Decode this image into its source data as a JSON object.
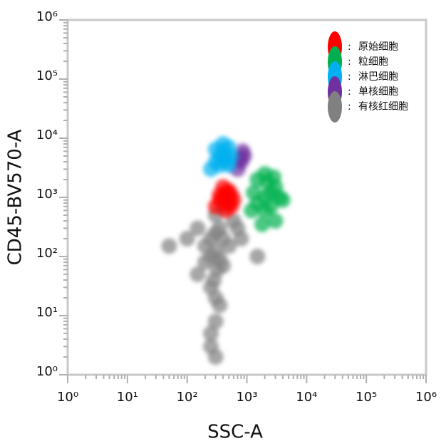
{
  "chart_data": {
    "type": "scatter",
    "x_label": "SSC-A",
    "y_label": "CD45-BV570-A",
    "log_x": true,
    "log_y": true,
    "minor_ticks": true,
    "legend_position": "upper right",
    "legend_separator": ":",
    "xlim": [
      1,
      1000000
    ],
    "ylim": [
      1,
      1000000
    ],
    "xticks": [
      {
        "value": 1,
        "label": "10⁰"
      },
      {
        "value": 10,
        "label": "10¹"
      },
      {
        "value": 100,
        "label": "10²"
      },
      {
        "value": 1000,
        "label": "10³"
      },
      {
        "value": 10000,
        "label": "10⁴"
      },
      {
        "value": 100000,
        "label": "10⁵"
      },
      {
        "value": 1000000,
        "label": "10⁶"
      }
    ],
    "yticks": [
      {
        "value": 1,
        "label": "10⁰"
      },
      {
        "value": 10,
        "label": "10¹"
      },
      {
        "value": 100,
        "label": "10²"
      },
      {
        "value": 1000,
        "label": "10³"
      },
      {
        "value": 10000,
        "label": "10⁴"
      },
      {
        "value": 100000,
        "label": "10⁵"
      },
      {
        "value": 1000000,
        "label": "10⁶"
      }
    ],
    "series": [
      {
        "name": "原始细胞",
        "color": "#ff0000",
        "x": [
          300,
          350,
          400,
          450,
          500,
          550,
          600,
          400,
          450,
          500,
          350,
          550
        ],
        "values": [
          700,
          900,
          1000,
          1200,
          800,
          1100,
          900,
          1500,
          600,
          1300,
          1100,
          700
        ]
      },
      {
        "name": "粒细胞",
        "color": "#00b050",
        "x": [
          1200,
          1500,
          2000,
          2500,
          3000,
          3500,
          1500,
          2000,
          2500,
          3000,
          1800,
          2200,
          1300,
          4000,
          2000,
          2800
        ],
        "values": [
          600,
          800,
          1000,
          1200,
          1500,
          1000,
          2000,
          2500,
          700,
          400,
          350,
          1800,
          1200,
          900,
          600,
          2200
        ]
      },
      {
        "name": "淋巴细胞",
        "color": "#00b0f0",
        "x": [
          250,
          300,
          350,
          400,
          450,
          500,
          550,
          300,
          400,
          500,
          350,
          450
        ],
        "values": [
          3000,
          4000,
          5000,
          6000,
          4500,
          3500,
          5000,
          6500,
          8000,
          7000,
          3500,
          4000
        ]
      },
      {
        "name": "单核细胞",
        "color": "#7030a0",
        "x": [
          700,
          800,
          900,
          850,
          750
        ],
        "values": [
          3000,
          4000,
          5000,
          6000,
          4500
        ]
      },
      {
        "name": "有核红细胞",
        "color": "#808080",
        "x": [
          150,
          200,
          250,
          300,
          350,
          400,
          200,
          250,
          300,
          350,
          400,
          500,
          250,
          300,
          350,
          300,
          250,
          280,
          320,
          300,
          600,
          700,
          150,
          400,
          100,
          50,
          800,
          1500,
          250,
          300
        ],
        "values": [
          50,
          80,
          100,
          120,
          90,
          70,
          150,
          200,
          250,
          300,
          200,
          150,
          30,
          20,
          15,
          8,
          5,
          40,
          60,
          500,
          400,
          300,
          300,
          700,
          200,
          150,
          200,
          100,
          3,
          2
        ]
      }
    ]
  }
}
